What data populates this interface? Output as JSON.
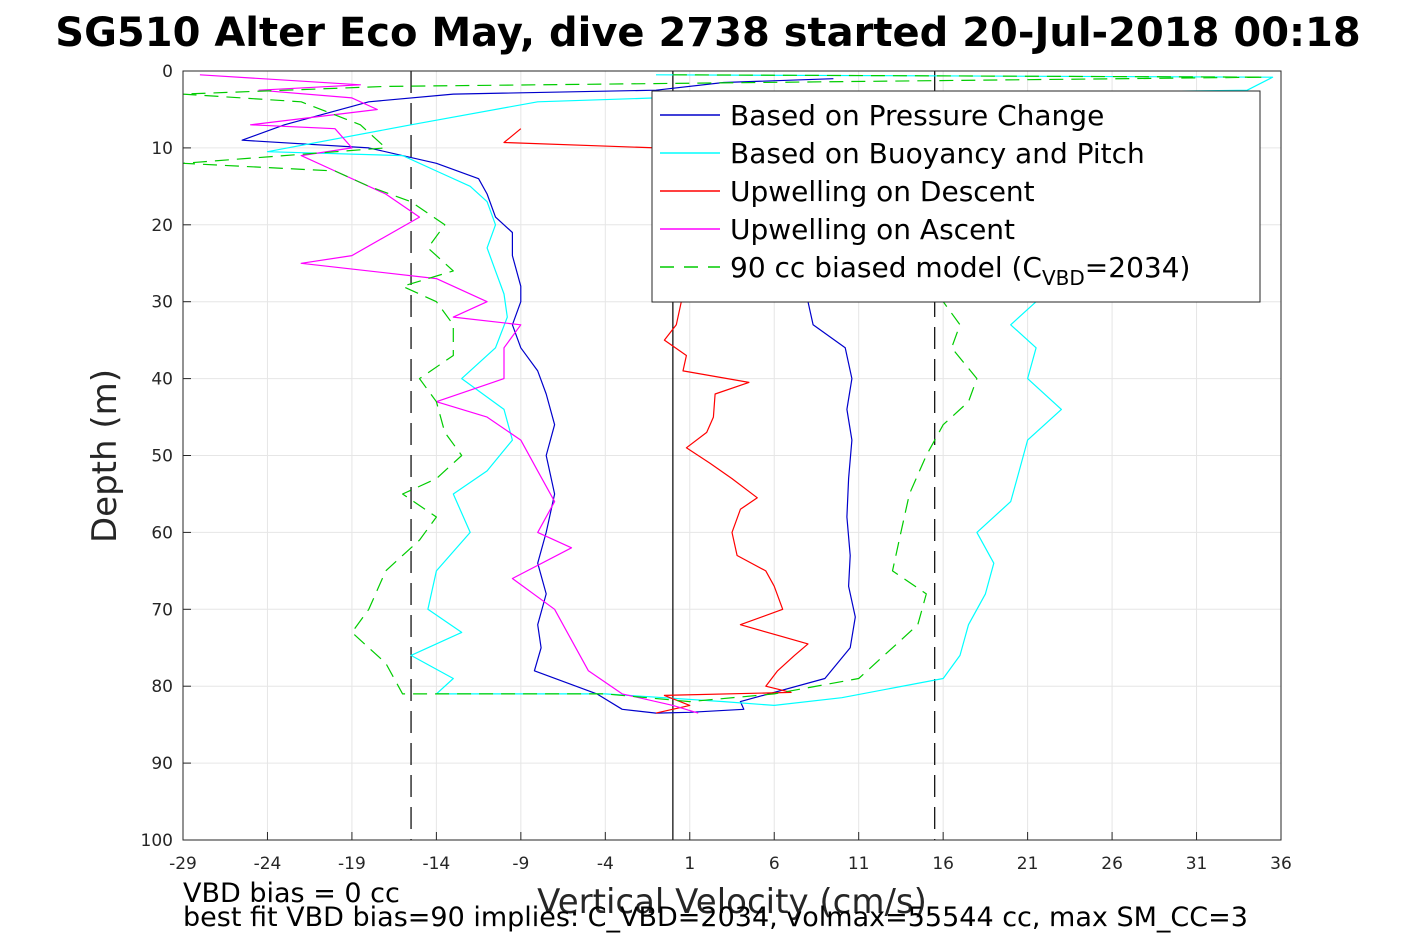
{
  "chart_data": {
    "type": "line",
    "title": "SG510 Alter Eco May, dive 2738 started 20-Jul-2018 00:18",
    "xlabel": "Vertical Velocity (cm/s)",
    "ylabel": "Depth (m)",
    "xlim": [
      -29,
      36
    ],
    "ylim": [
      0,
      100
    ],
    "y_reversed": true,
    "grid": true,
    "x_ticks": [
      -29,
      -24,
      -19,
      -14,
      -9,
      -4,
      1,
      6,
      11,
      16,
      21,
      26,
      31,
      36
    ],
    "x_tick_labels": [
      "-29",
      "-24",
      "-19",
      "-14",
      "-9",
      "-4",
      "1",
      "6",
      "11",
      "16",
      "21",
      "26",
      "31",
      "36"
    ],
    "y_ticks": [
      0,
      10,
      20,
      30,
      40,
      50,
      60,
      70,
      80,
      90,
      100
    ],
    "y_tick_labels": [
      "0",
      "10",
      "20",
      "30",
      "40",
      "50",
      "60",
      "70",
      "80",
      "90",
      "100"
    ],
    "reference_lines": [
      {
        "x": 0,
        "style": "solid",
        "color": "#000000"
      },
      {
        "x": -15.5,
        "style": "dashed",
        "color": "#000000"
      },
      {
        "x": 15.5,
        "style": "dashed",
        "color": "#000000"
      }
    ],
    "legend": {
      "placement": "top-right",
      "entries": [
        {
          "series": 0,
          "text": "Based on Pressure Change"
        },
        {
          "series": 1,
          "text": "Based on Buoyancy and Pitch"
        },
        {
          "series": 2,
          "text": "Upwelling on Descent"
        },
        {
          "series": 3,
          "text": "Upwelling on Ascent"
        },
        {
          "series": 4,
          "text": "90 cc biased model (C",
          "subscript": "VBD",
          "suffix": "=2034)"
        }
      ]
    },
    "series": [
      {
        "name": "Based on Pressure Change",
        "color": "#0000cc",
        "dash": "solid",
        "points": [
          [
            9.5,
            1
          ],
          [
            3,
            1.5
          ],
          [
            -1,
            2.5
          ],
          [
            -13,
            3
          ],
          [
            -18,
            4
          ],
          [
            -23,
            7
          ],
          [
            -25.5,
            9
          ],
          [
            -18,
            10
          ],
          [
            -14,
            12
          ],
          [
            -11.5,
            14
          ],
          [
            -11,
            16
          ],
          [
            -10.5,
            19
          ],
          [
            -9.5,
            21
          ],
          [
            -9.5,
            24
          ],
          [
            -9,
            28
          ],
          [
            -9,
            30
          ],
          [
            -9.5,
            33
          ],
          [
            -9,
            36
          ],
          [
            -8,
            39
          ],
          [
            -7.5,
            42
          ],
          [
            -7,
            46
          ],
          [
            -7.5,
            50
          ],
          [
            -7,
            55
          ],
          [
            -7.5,
            60
          ],
          [
            -8,
            64
          ],
          [
            -7.5,
            68
          ],
          [
            -8,
            72
          ],
          [
            -7.8,
            75
          ],
          [
            -8.2,
            78
          ],
          [
            -4.5,
            81
          ],
          [
            -3,
            83
          ],
          [
            -1,
            83.5
          ],
          [
            1,
            83.4
          ],
          [
            4.2,
            83
          ],
          [
            4,
            82
          ],
          [
            9,
            79
          ],
          [
            10.5,
            75
          ],
          [
            10.8,
            71
          ],
          [
            10.4,
            67
          ],
          [
            10.5,
            63
          ],
          [
            10.3,
            58
          ],
          [
            10.4,
            53
          ],
          [
            10.6,
            48
          ],
          [
            10.3,
            44
          ],
          [
            10.6,
            40
          ],
          [
            10.2,
            36
          ],
          [
            8.3,
            33
          ],
          [
            8,
            30
          ]
        ]
      },
      {
        "name": "Based on Buoyancy and Pitch",
        "color": "#00ffff",
        "dash": "solid",
        "points": [
          [
            -1,
            0.5
          ],
          [
            35.5,
            0.8
          ],
          [
            34,
            2.5
          ],
          [
            -1,
            3.5
          ],
          [
            -8,
            4
          ],
          [
            -15.5,
            7
          ],
          [
            -24,
            10.5
          ],
          [
            -16,
            11
          ],
          [
            -14,
            13
          ],
          [
            -12,
            15
          ],
          [
            -11,
            17
          ],
          [
            -10.5,
            20
          ],
          [
            -11,
            23
          ],
          [
            -10.5,
            26
          ],
          [
            -10,
            29
          ],
          [
            -9.8,
            32
          ],
          [
            -10.5,
            36
          ],
          [
            -12.5,
            40
          ],
          [
            -10,
            44
          ],
          [
            -9.5,
            48
          ],
          [
            -11,
            52
          ],
          [
            -13,
            55
          ],
          [
            -12,
            60
          ],
          [
            -14,
            65
          ],
          [
            -14.5,
            70
          ],
          [
            -12.5,
            73
          ],
          [
            -15.5,
            76
          ],
          [
            -13,
            79
          ],
          [
            -14,
            81
          ],
          [
            -4,
            81
          ],
          [
            3,
            82
          ],
          [
            6,
            82.5
          ],
          [
            10,
            81.5
          ],
          [
            16,
            79
          ],
          [
            17,
            76
          ],
          [
            17.5,
            72
          ],
          [
            18.5,
            68
          ],
          [
            19,
            64
          ],
          [
            18,
            60
          ],
          [
            20,
            56
          ],
          [
            20.5,
            52
          ],
          [
            21,
            48
          ],
          [
            23,
            44
          ],
          [
            21,
            40
          ],
          [
            21.5,
            36
          ],
          [
            20,
            33
          ],
          [
            21.5,
            30
          ],
          [
            20.5,
            27
          ]
        ]
      },
      {
        "name": "Upwelling on Descent",
        "color": "#ff0000",
        "dash": "solid",
        "points": [
          [
            -9,
            7.5
          ],
          [
            -10,
            9.3
          ],
          [
            -1,
            10
          ]
        ],
        "points2": [
          [
            0.5,
            30
          ],
          [
            0.2,
            33
          ],
          [
            -0.5,
            35
          ],
          [
            0.8,
            37
          ],
          [
            0.6,
            39
          ],
          [
            4.5,
            40.5
          ],
          [
            2.5,
            42
          ],
          [
            2.4,
            45
          ],
          [
            2,
            47
          ],
          [
            0.8,
            49
          ],
          [
            2.2,
            51
          ],
          [
            3.5,
            53
          ],
          [
            5,
            55.5
          ],
          [
            4,
            57
          ],
          [
            3.5,
            60
          ],
          [
            3.8,
            63
          ],
          [
            5.5,
            65
          ],
          [
            6,
            67
          ],
          [
            6.5,
            70
          ],
          [
            4,
            72
          ],
          [
            8,
            74.5
          ],
          [
            7.2,
            76
          ],
          [
            6.2,
            78
          ],
          [
            5.5,
            80
          ],
          [
            7,
            80.8
          ],
          [
            -0.5,
            81.2
          ],
          [
            1,
            82.5
          ],
          [
            -1,
            83.5
          ]
        ]
      },
      {
        "name": "Upwelling on Ascent",
        "color": "#ff00ff",
        "dash": "solid",
        "points": [
          [
            -28,
            0.5
          ],
          [
            -18.5,
            1.8
          ],
          [
            -24.5,
            2.5
          ],
          [
            -19,
            3.5
          ],
          [
            -17.5,
            5
          ],
          [
            -25,
            7
          ],
          [
            -20,
            7.5
          ],
          [
            -19,
            10
          ],
          [
            -22,
            11
          ],
          [
            -20,
            13
          ],
          [
            -17,
            16
          ],
          [
            -15,
            19
          ],
          [
            -19,
            24
          ],
          [
            -22,
            25
          ],
          [
            -14,
            27
          ],
          [
            -11,
            30
          ],
          [
            -13,
            32
          ],
          [
            -9,
            33
          ],
          [
            -10,
            36
          ],
          [
            -10,
            40
          ],
          [
            -14,
            43
          ],
          [
            -11,
            45
          ],
          [
            -9,
            48
          ],
          [
            -8,
            52
          ],
          [
            -7,
            56
          ],
          [
            -8,
            60
          ],
          [
            -6,
            62
          ],
          [
            -9.5,
            66
          ],
          [
            -7,
            70
          ],
          [
            -6,
            74
          ],
          [
            -5,
            78
          ],
          [
            -3,
            81
          ],
          [
            0,
            82.5
          ],
          [
            1.5,
            83.5
          ]
        ]
      },
      {
        "name": "90 cc biased model (CVBD=2034)",
        "color": "#00cc00",
        "dash": "dashed",
        "points": [
          [
            0,
            0.5
          ],
          [
            35,
            0.8
          ],
          [
            -17,
            2
          ],
          [
            -29,
            3
          ],
          [
            -22,
            4
          ],
          [
            -18.5,
            7
          ],
          [
            -17,
            10
          ],
          [
            -29,
            12
          ],
          [
            -20,
            13
          ],
          [
            -18,
            15
          ],
          [
            -15.5,
            17
          ],
          [
            -13.5,
            20
          ],
          [
            -14.5,
            23
          ],
          [
            -13,
            26
          ],
          [
            -16,
            28
          ],
          [
            -14,
            30
          ],
          [
            -13,
            33
          ],
          [
            -13,
            37
          ],
          [
            -15,
            40
          ],
          [
            -14,
            43
          ],
          [
            -13.5,
            47
          ],
          [
            -12.5,
            50
          ],
          [
            -14,
            53
          ],
          [
            -16,
            55
          ],
          [
            -14,
            58
          ],
          [
            -15,
            61
          ],
          [
            -17,
            65
          ],
          [
            -18,
            70
          ],
          [
            -19,
            73
          ],
          [
            -17,
            77
          ],
          [
            -16,
            81
          ],
          [
            -4,
            81
          ],
          [
            1,
            82
          ],
          [
            6,
            81
          ],
          [
            11,
            79
          ],
          [
            13,
            75
          ],
          [
            14.5,
            72
          ],
          [
            15,
            68
          ],
          [
            13,
            65
          ],
          [
            13.5,
            60
          ],
          [
            14,
            55
          ],
          [
            15,
            50
          ],
          [
            16,
            46
          ],
          [
            17.5,
            43
          ],
          [
            18,
            40
          ],
          [
            16.5,
            36
          ],
          [
            17,
            33
          ],
          [
            16,
            30
          ]
        ]
      }
    ]
  },
  "notes": {
    "line1": "VBD bias = 0 cc",
    "line2": "best fit VBD bias=90 implies: C_VBD=2034, volmax=55544 cc, max SM_CC=3"
  }
}
